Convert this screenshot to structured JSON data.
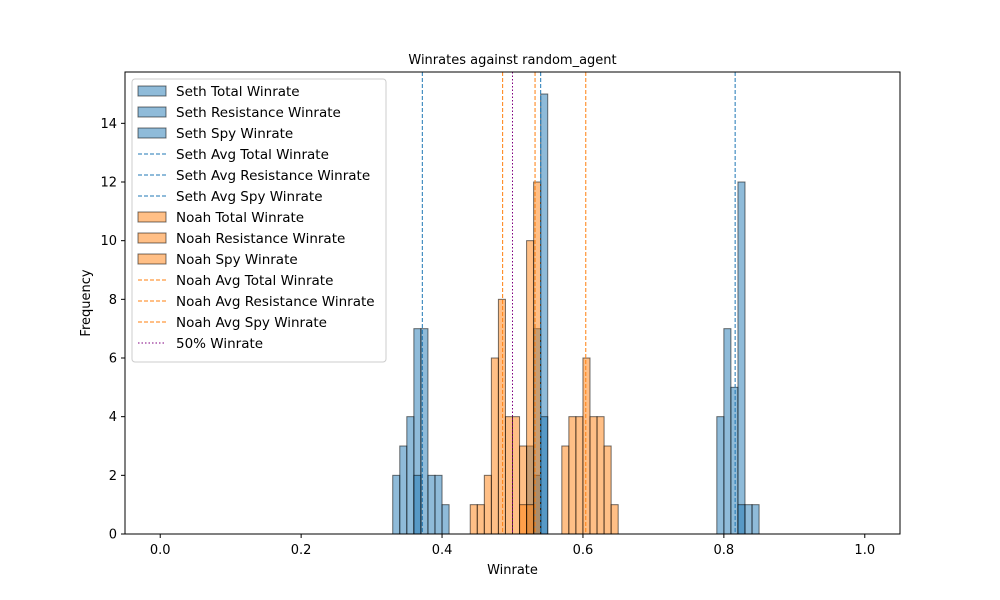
{
  "chart_data": {
    "type": "bar",
    "title": "Winrates against random_agent",
    "xlabel": "Winrate",
    "ylabel": "Frequency",
    "xlim": [
      -0.05,
      1.05
    ],
    "ylim": [
      0,
      15.75
    ],
    "xticks": [
      "0.0",
      "0.2",
      "0.4",
      "0.6",
      "0.8",
      "1.0"
    ],
    "yticks": [
      "0",
      "2",
      "4",
      "6",
      "8",
      "10",
      "12",
      "14"
    ],
    "bin_width": 0.01,
    "grid": false,
    "legend_position": "upper-left",
    "colors": {
      "seth": "#1f77b4",
      "noah": "#ff7f0e",
      "fifty": "#800080"
    },
    "series": [
      {
        "name": "Seth Total Winrate",
        "kind": "hist",
        "color": "#1f77b4",
        "bars": [
          [
            0.36,
            7
          ],
          [
            0.37,
            7
          ],
          [
            0.52,
            3
          ],
          [
            0.53,
            7
          ],
          [
            0.54,
            15
          ],
          [
            0.8,
            7
          ],
          [
            0.81,
            5
          ],
          [
            0.82,
            12
          ]
        ]
      },
      {
        "name": "Seth Resistance Winrate",
        "kind": "hist",
        "color": "#1f77b4",
        "bars": [
          [
            0.33,
            2
          ],
          [
            0.34,
            3
          ],
          [
            0.35,
            4
          ],
          [
            0.36,
            2
          ],
          [
            0.38,
            2
          ],
          [
            0.39,
            2
          ],
          [
            0.4,
            1
          ],
          [
            0.53,
            2
          ],
          [
            0.54,
            4
          ]
        ]
      },
      {
        "name": "Seth Spy Winrate",
        "kind": "hist",
        "color": "#1f77b4",
        "bars": [
          [
            0.79,
            4
          ],
          [
            0.82,
            1
          ],
          [
            0.83,
            1
          ],
          [
            0.84,
            1
          ]
        ]
      },
      {
        "name": "Seth Avg Total Winrate",
        "kind": "vline",
        "color": "#1f77b4",
        "x": 0.54
      },
      {
        "name": "Seth Avg Resistance Winrate",
        "kind": "vline",
        "color": "#1f77b4",
        "x": 0.372
      },
      {
        "name": "Seth Avg Spy Winrate",
        "kind": "vline",
        "color": "#1f77b4",
        "x": 0.816
      },
      {
        "name": "Noah Total Winrate",
        "kind": "hist",
        "color": "#ff7f0e",
        "bars": [
          [
            0.47,
            6
          ],
          [
            0.48,
            8
          ],
          [
            0.49,
            4
          ],
          [
            0.51,
            3
          ],
          [
            0.52,
            10
          ],
          [
            0.53,
            12
          ]
        ]
      },
      {
        "name": "Noah Resistance Winrate",
        "kind": "hist",
        "color": "#ff7f0e",
        "bars": [
          [
            0.44,
            1
          ],
          [
            0.45,
            1
          ],
          [
            0.46,
            2
          ],
          [
            0.5,
            4
          ],
          [
            0.51,
            1
          ],
          [
            0.52,
            1
          ]
        ]
      },
      {
        "name": "Noah Spy Winrate",
        "kind": "hist",
        "color": "#ff7f0e",
        "bars": [
          [
            0.57,
            3
          ],
          [
            0.58,
            4
          ],
          [
            0.59,
            4
          ],
          [
            0.6,
            6
          ],
          [
            0.61,
            4
          ],
          [
            0.62,
            4
          ],
          [
            0.63,
            3
          ],
          [
            0.64,
            1
          ]
        ]
      },
      {
        "name": "Noah Avg Total Winrate",
        "kind": "vline",
        "color": "#ff7f0e",
        "x": 0.532
      },
      {
        "name": "Noah Avg Resistance Winrate",
        "kind": "vline",
        "color": "#ff7f0e",
        "x": 0.486
      },
      {
        "name": "Noah Avg Spy Winrate",
        "kind": "vline",
        "color": "#ff7f0e",
        "x": 0.604
      },
      {
        "name": "50% Winrate",
        "kind": "vline_dotted",
        "color": "#800080",
        "x": 0.5
      }
    ]
  }
}
